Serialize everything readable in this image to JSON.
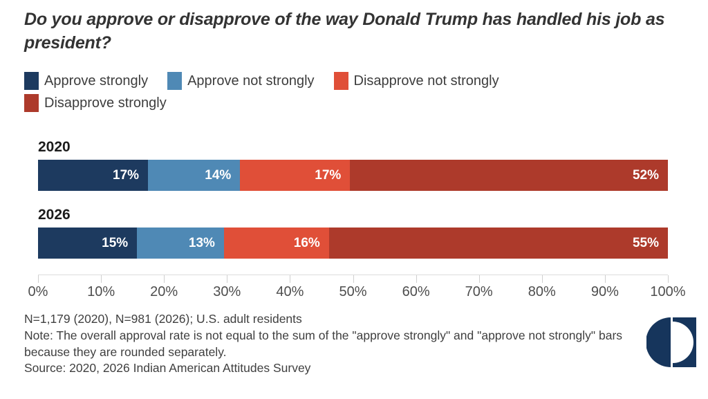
{
  "title": "Do you approve or disapprove of the way Donald Trump has handled his job as president?",
  "colors": {
    "approve_strong": "#1d3a5f",
    "approve_weak": "#4f89b5",
    "disapprove_weak": "#e04f38",
    "disapprove_strong": "#ad3a2b",
    "logo_navy": "#16355c"
  },
  "legend": {
    "items": [
      {
        "label": "Approve strongly",
        "color": "#1d3a5f"
      },
      {
        "label": "Approve not strongly",
        "color": "#4f89b5"
      },
      {
        "label": "Disapprove not strongly",
        "color": "#e04f38"
      },
      {
        "label": "Disapprove strongly",
        "color": "#ad3a2b"
      }
    ]
  },
  "chart_data": {
    "type": "bar",
    "orientation": "horizontal-stacked",
    "categories": [
      "2020",
      "2026"
    ],
    "series": [
      {
        "name": "Approve strongly",
        "color": "#1d3a5f",
        "values": [
          17,
          15
        ]
      },
      {
        "name": "Approve not strongly",
        "color": "#4f89b5",
        "values": [
          14,
          13
        ]
      },
      {
        "name": "Disapprove not strongly",
        "color": "#e04f38",
        "values": [
          17,
          16
        ]
      },
      {
        "name": "Disapprove strongly",
        "color": "#ad3a2b",
        "values": [
          52,
          55
        ]
      }
    ],
    "value_suffix": "%",
    "xlim": [
      0,
      100
    ],
    "x_ticks": [
      "0%",
      "10%",
      "20%",
      "30%",
      "40%",
      "50%",
      "60%",
      "70%",
      "80%",
      "90%",
      "100%"
    ],
    "legend_position": "top",
    "grid": false,
    "bar_value_labels": "inside-right-white-bold"
  },
  "footer": {
    "line1": "N=1,179 (2020), N=981 (2026); U.S. adult residents",
    "note": "Note: The overall approval rate is not equal to the sum of the \"approve strongly\" and \"approve not strongly\" bars because they are rounded separately.",
    "source": "Source: 2020, 2026 Indian American Attitudes Survey"
  },
  "logo": {
    "name": "half-circle-square-logo"
  }
}
